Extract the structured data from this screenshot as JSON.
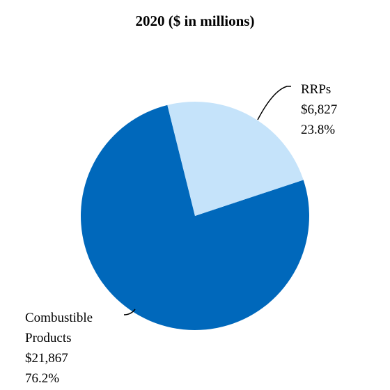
{
  "chart_data": {
    "type": "pie",
    "title": "2020 ($ in millions)",
    "slices": [
      {
        "name": "RRPs",
        "value": 6827,
        "value_label": "$6,827",
        "percent": 23.8,
        "percent_label": "23.8%",
        "color": "#c5e3fa"
      },
      {
        "name": "Combustible Products",
        "name_line1": "Combustible",
        "name_line2": "Products",
        "value": 21867,
        "value_label": "$21,867",
        "percent": 76.2,
        "percent_label": "76.2%",
        "color": "#0068bb"
      }
    ],
    "legend": "none"
  }
}
